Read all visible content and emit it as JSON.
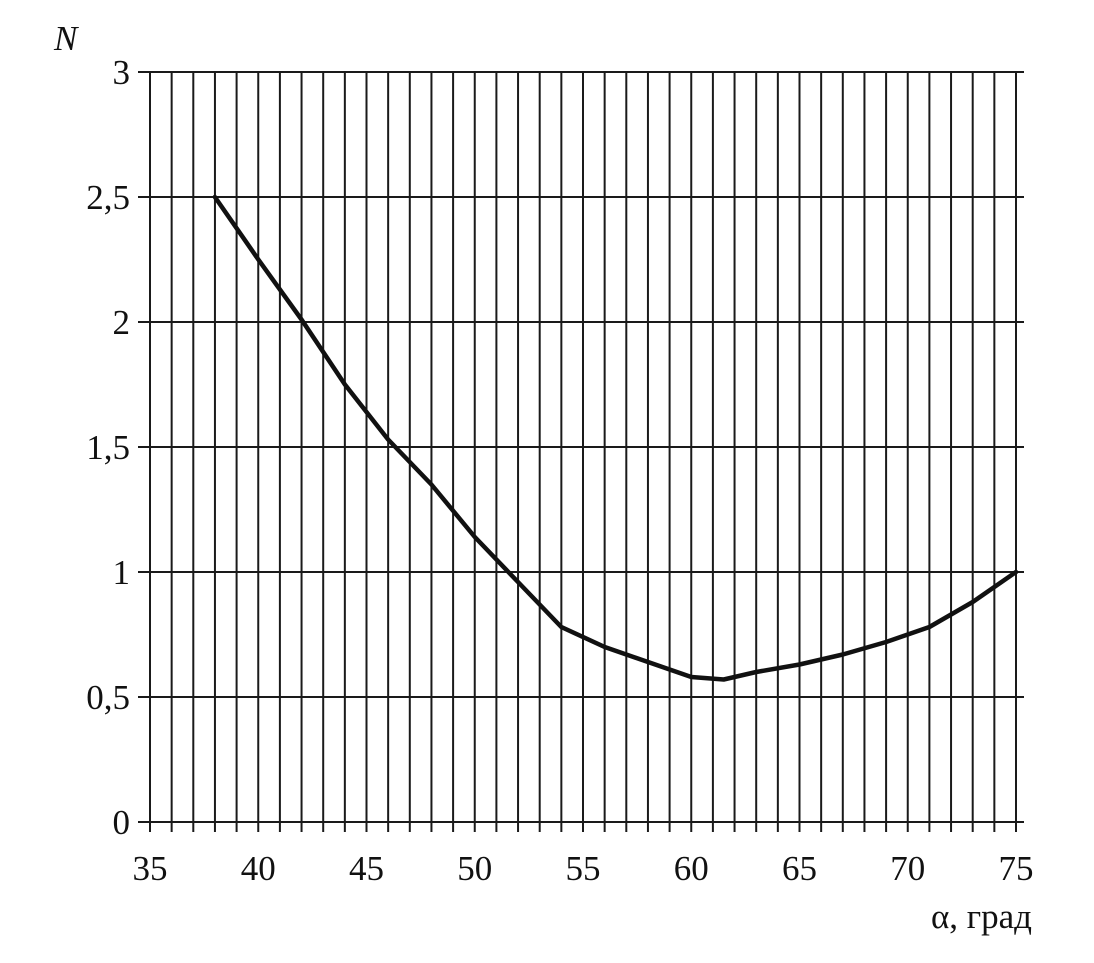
{
  "chart_data": {
    "type": "line",
    "title": "",
    "xlabel": "α, град",
    "ylabel": "N",
    "xlim": [
      35,
      75
    ],
    "ylim": [
      0,
      3
    ],
    "x_ticks": [
      "35",
      "40",
      "45",
      "50",
      "55",
      "60",
      "65",
      "70",
      "75"
    ],
    "y_ticks": [
      "0",
      "0,5",
      "1",
      "1,5",
      "2",
      "2,5",
      "3"
    ],
    "x_tick_values": [
      35,
      40,
      45,
      50,
      55,
      60,
      65,
      70,
      75
    ],
    "y_tick_values": [
      0,
      0.5,
      1,
      1.5,
      2,
      2.5,
      3
    ],
    "minor_x_step": 1,
    "grid": true,
    "series": [
      {
        "x": [
          38,
          40,
          42,
          44,
          46,
          48,
          50,
          52,
          54,
          56,
          58,
          60,
          61.5,
          63,
          65,
          67,
          69,
          71,
          73,
          75
        ],
        "y": [
          2.5,
          2.25,
          2.01,
          1.75,
          1.53,
          1.35,
          1.14,
          0.96,
          0.78,
          0.7,
          0.64,
          0.58,
          0.57,
          0.6,
          0.63,
          0.67,
          0.72,
          0.78,
          0.88,
          1.0
        ]
      }
    ]
  },
  "colors": {
    "line": "#111111",
    "grid": "#1a1a1a",
    "background": "#ffffff"
  }
}
